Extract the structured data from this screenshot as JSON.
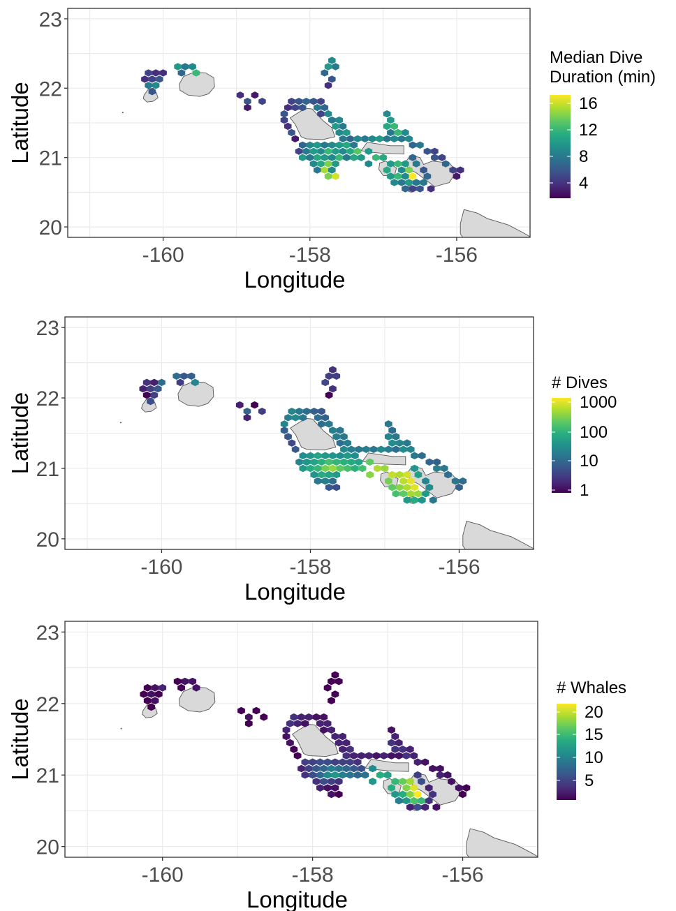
{
  "maps": [
    {
      "ylabel": "Latitude",
      "xlabel": "Longitude",
      "legend_title": [
        "Median Dive",
        "Duration (min)"
      ],
      "legend_ticks": [
        "16",
        "12",
        "8",
        "4"
      ],
      "colorbar": "viridis",
      "xticks": [
        "-160",
        "-158",
        "-156"
      ],
      "yticks": [
        "23",
        "22",
        "21",
        "20"
      ],
      "xlim": [
        -161.3,
        -155.0
      ],
      "ylim": [
        19.85,
        23.15
      ],
      "value_range": [
        2,
        17
      ]
    },
    {
      "ylabel": "Latitude",
      "xlabel": "Longitude",
      "legend_title": [
        "# Dives"
      ],
      "legend_ticks": [
        "1000",
        "100",
        "10",
        "1"
      ],
      "colorbar": "viridis",
      "scale": "log10",
      "xticks": [
        "-160",
        "-158",
        "-156"
      ],
      "yticks": [
        "23",
        "22",
        "21",
        "20"
      ],
      "xlim": [
        -161.3,
        -155.0
      ],
      "ylim": [
        19.85,
        23.15
      ],
      "value_range": [
        1,
        2000
      ]
    },
    {
      "ylabel": "Latitude",
      "xlabel": "Longitude",
      "legend_title": [
        "# Whales"
      ],
      "legend_ticks": [
        "20",
        "15",
        "10",
        "5"
      ],
      "colorbar": "viridis",
      "xticks": [
        "-160",
        "-158",
        "-156"
      ],
      "yticks": [
        "23",
        "22",
        "21",
        "20"
      ],
      "xlim": [
        -161.3,
        -155.0
      ],
      "ylim": [
        19.85,
        23.15
      ],
      "value_range": [
        1,
        22
      ]
    }
  ]
}
